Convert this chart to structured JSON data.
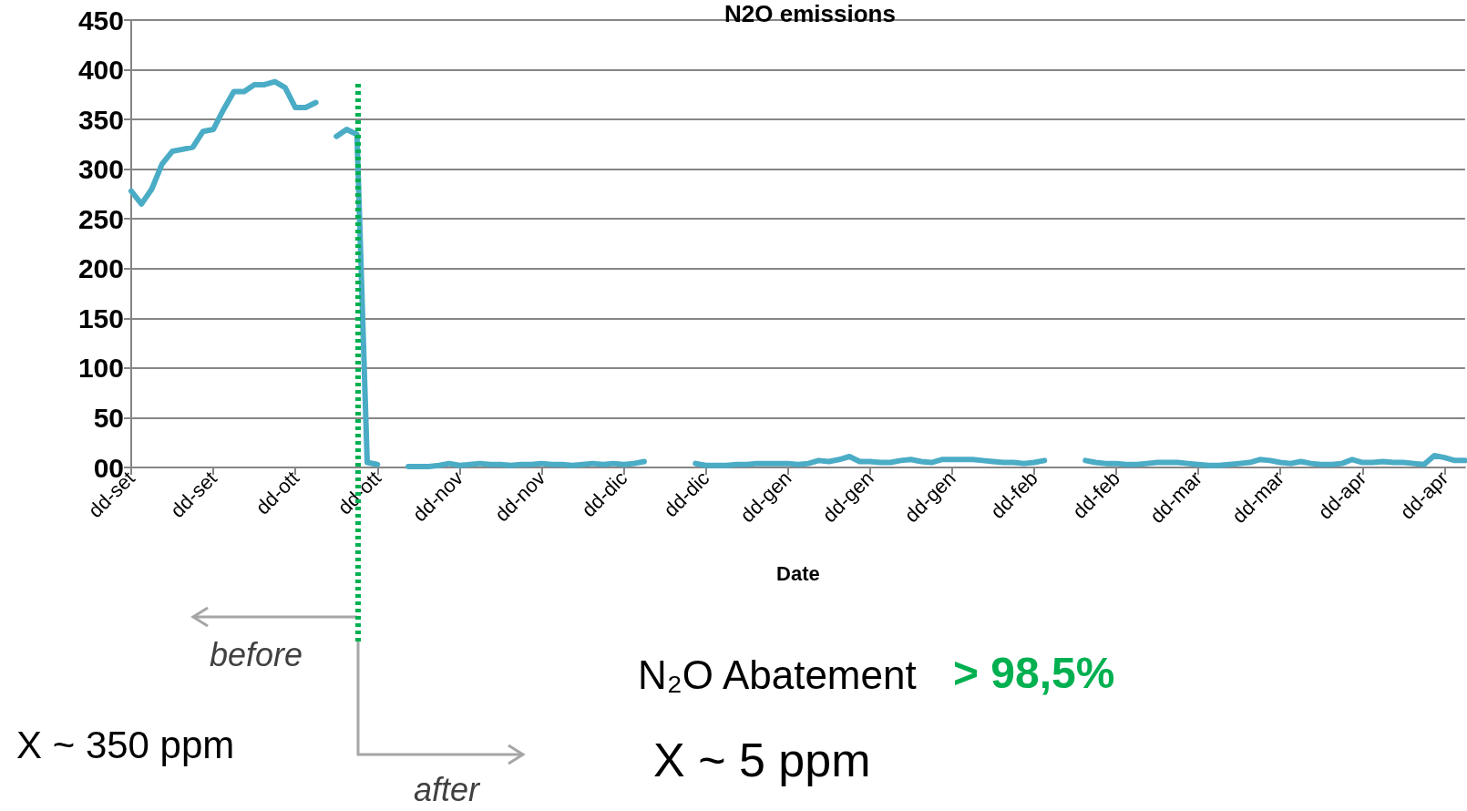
{
  "chart_data": {
    "type": "line",
    "title": "N2O emissions",
    "xlabel": "Date",
    "categories": [
      "dd-set",
      null,
      null,
      null,
      null,
      null,
      null,
      null,
      "dd-set",
      null,
      null,
      null,
      null,
      null,
      null,
      null,
      "dd-ott",
      null,
      null,
      null,
      null,
      null,
      null,
      null,
      "dd-ott",
      null,
      null,
      null,
      null,
      null,
      null,
      null,
      "dd-nov",
      null,
      null,
      null,
      null,
      null,
      null,
      null,
      "dd-nov",
      null,
      null,
      null,
      null,
      null,
      null,
      null,
      "dd-dic",
      null,
      null,
      null,
      null,
      null,
      null,
      null,
      "dd-dic",
      null,
      null,
      null,
      null,
      null,
      null,
      null,
      "dd-gen",
      null,
      null,
      null,
      null,
      null,
      null,
      null,
      "dd-gen",
      null,
      null,
      null,
      null,
      null,
      null,
      null,
      "dd-gen",
      null,
      null,
      null,
      null,
      null,
      null,
      null,
      "dd-feb",
      null,
      null,
      null,
      null,
      null,
      null,
      null,
      "dd-feb",
      null,
      null,
      null,
      null,
      null,
      null,
      null,
      "dd-mar",
      null,
      null,
      null,
      null,
      null,
      null,
      null,
      "dd-mar",
      null,
      null,
      null,
      null,
      null,
      null,
      null,
      "dd-apr",
      null,
      null,
      null,
      null,
      null,
      null,
      null,
      "dd-apr",
      null,
      null
    ],
    "series": [
      {
        "color": "#4bacc6",
        "values": [
          278,
          265,
          280,
          305,
          318,
          320,
          322,
          338,
          340,
          360,
          378,
          378,
          385,
          385,
          388,
          382,
          362,
          362,
          367,
          null,
          333,
          340,
          335,
          5,
          3,
          null,
          null,
          1,
          1,
          1,
          2,
          4,
          2,
          3,
          4,
          3,
          3,
          2,
          3,
          3,
          4,
          3,
          3,
          2,
          3,
          4,
          3,
          4,
          3,
          4,
          6,
          null,
          null,
          null,
          null,
          4,
          2,
          2,
          2,
          3,
          3,
          4,
          4,
          4,
          4,
          3,
          4,
          7,
          6,
          8,
          11,
          6,
          6,
          5,
          5,
          7,
          8,
          6,
          5,
          8,
          8,
          8,
          8,
          7,
          6,
          5,
          5,
          4,
          5,
          7,
          null,
          null,
          null,
          7,
          5,
          4,
          4,
          3,
          3,
          4,
          5,
          5,
          5,
          4,
          3,
          2,
          2,
          3,
          4,
          5,
          8,
          7,
          5,
          4,
          6,
          4,
          3,
          3,
          4,
          8,
          5,
          5,
          6,
          5,
          5,
          4,
          3,
          12,
          10,
          7,
          7
        ]
      }
    ],
    "ylim": [
      0,
      450
    ],
    "yticks": [
      {
        "value": 0,
        "label": "00"
      },
      50,
      100,
      150,
      200,
      250,
      300,
      350,
      400,
      450
    ],
    "grid": "y",
    "marker": "none",
    "line_style": "solid",
    "annotations": [
      "before",
      "after",
      "X ~ 350 ppm",
      "X ~ 5 ppm",
      "N₂O Abatement",
      "> 98,5%"
    ]
  }
}
